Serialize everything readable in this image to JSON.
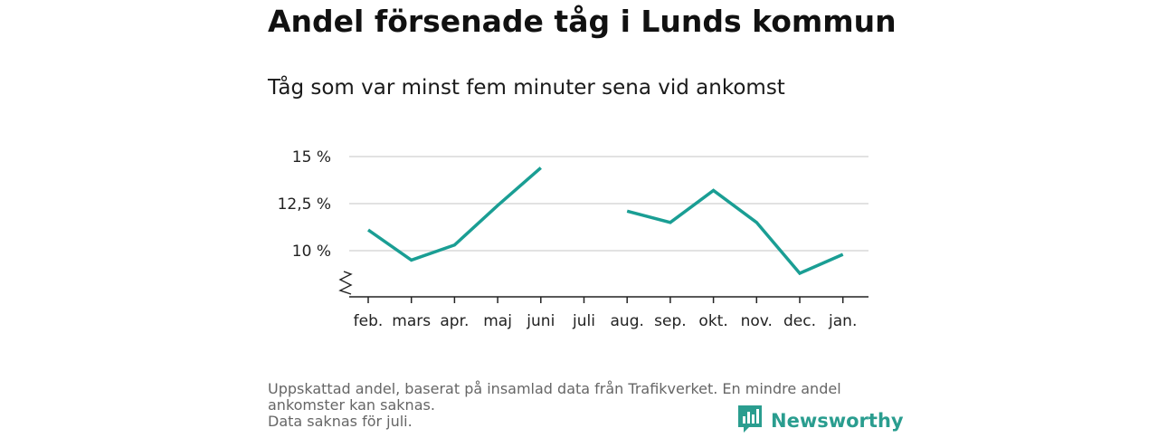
{
  "title": "Andel försenade tåg i Lunds kommun",
  "subtitle": "Tåg som var minst fem minuter sena vid ankomst",
  "footnote_lines": [
    "Uppskattad andel, baserat på insamlad data från Trafikverket. En mindre andel ankomster kan saknas.",
    "Data saknas för juli."
  ],
  "brand": {
    "name": "Newsworthy",
    "icon": "bar-chart-logo-icon"
  },
  "colors": {
    "line": "#1a9e94",
    "grid": "#d9d9d9",
    "axis": "#222222"
  },
  "chart_data": {
    "type": "line",
    "categories": [
      "feb.",
      "mars",
      "apr.",
      "maj",
      "juni",
      "juli",
      "aug.",
      "sep.",
      "okt.",
      "nov.",
      "dec.",
      "jan."
    ],
    "series": [
      {
        "values": [
          11.1,
          9.5,
          10.3,
          12.4,
          14.4,
          null,
          12.1,
          11.5,
          13.2,
          11.5,
          8.8,
          9.8
        ]
      }
    ],
    "y_ticks": [
      10,
      12.5,
      15
    ],
    "y_tick_labels": [
      "10 %",
      "12,5 %",
      "15 %"
    ],
    "ylim": [
      7.5,
      15
    ],
    "y_axis_break": true,
    "grid": true,
    "xlabel": "",
    "ylabel": ""
  }
}
